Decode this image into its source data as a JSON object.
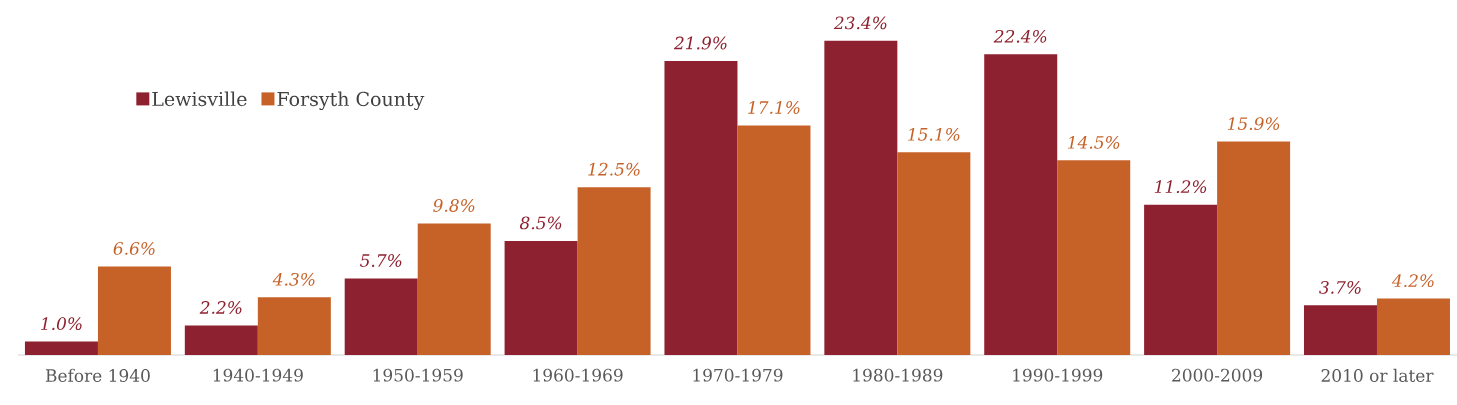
{
  "chart_data": {
    "type": "bar",
    "categories": [
      "Before 1940",
      "1940-1949",
      "1950-1959",
      "1960-1969",
      "1970-1979",
      "1980-1989",
      "1990-1999",
      "2000-2009",
      "2010 or later"
    ],
    "series": [
      {
        "name": "Lewisville",
        "color": "#8e212f",
        "values": [
          1.0,
          2.2,
          5.7,
          8.5,
          21.9,
          23.4,
          22.4,
          11.2,
          3.7
        ],
        "value_labels": [
          "1.0%",
          "2.2%",
          "5.7%",
          "8.5%",
          "21.9%",
          "23.4%",
          "22.4%",
          "11.2%",
          "3.7%"
        ]
      },
      {
        "name": "Forsyth County",
        "color": "#c66228",
        "values": [
          6.6,
          4.3,
          9.8,
          12.5,
          17.1,
          15.1,
          14.5,
          15.9,
          4.2
        ],
        "value_labels": [
          "6.6%",
          "4.3%",
          "9.8%",
          "12.5%",
          "17.1%",
          "15.1%",
          "14.5%",
          "15.9%",
          "4.2%"
        ]
      }
    ],
    "legend": "top left"
  }
}
